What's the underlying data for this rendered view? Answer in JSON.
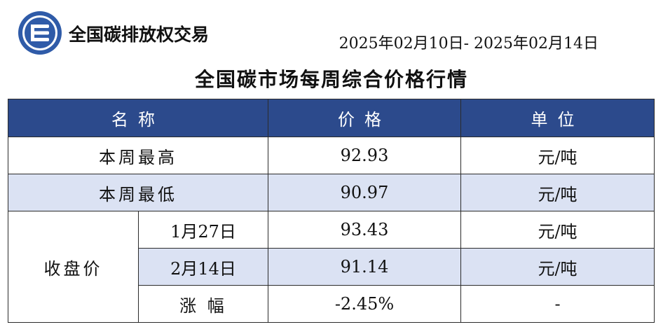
{
  "header": {
    "brand": "全国碳排放权交易",
    "date_range": "2025年02月10日- 2025年02月14日",
    "title": "全国碳市场每周综合价格行情"
  },
  "table": {
    "columns": [
      "名称",
      "价格",
      "单位"
    ],
    "rows": [
      {
        "name": "本周最高",
        "price": "92.93",
        "unit": "元/吨"
      },
      {
        "name": "本周最低",
        "price": "90.97",
        "unit": "元/吨"
      }
    ],
    "closing": {
      "label": "收盘价",
      "rows": [
        {
          "sub": "1月27日",
          "price": "93.43",
          "unit": "元/吨"
        },
        {
          "sub": "2月14日",
          "price": "91.14",
          "unit": "元/吨"
        },
        {
          "sub": "涨 幅",
          "price": "-2.45%",
          "unit": "-"
        }
      ]
    }
  },
  "colors": {
    "header_bg": "#2c4a8c",
    "shade_bg": "#dbe2f3",
    "logo_blue": "#2f5ba8"
  }
}
